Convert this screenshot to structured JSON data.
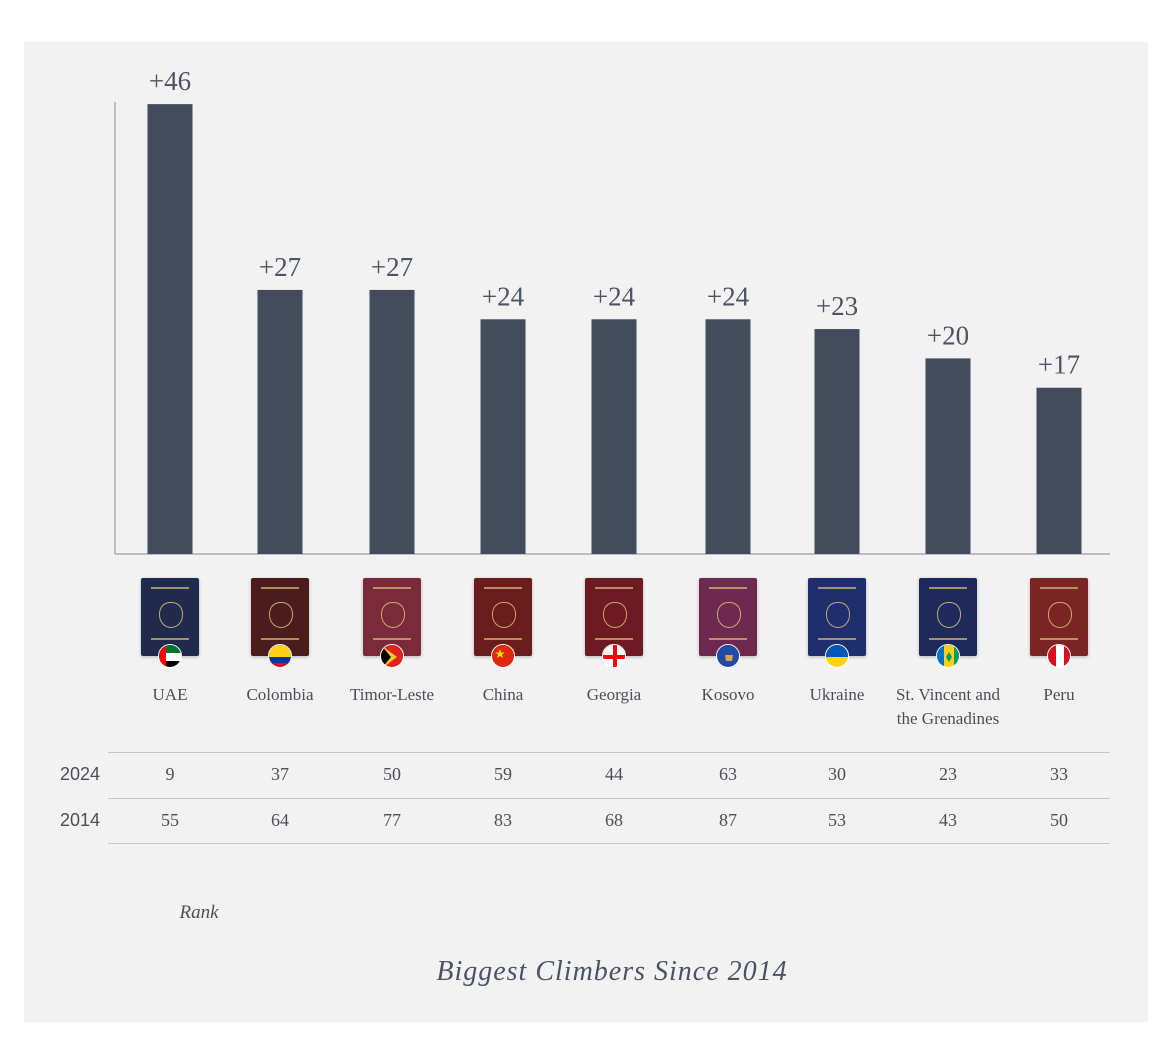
{
  "chart_data": {
    "type": "bar",
    "title": "Biggest Climbers Since 2014",
    "categories": [
      "UAE",
      "Colombia",
      "Timor-Leste",
      "China",
      "Georgia",
      "Kosovo",
      "Ukraine",
      "St. Vincent and the Grenadines",
      "Peru"
    ],
    "category_lines": [
      [
        "UAE"
      ],
      [
        "Colombia"
      ],
      [
        "Timor-Leste"
      ],
      [
        "China"
      ],
      [
        "Georgia"
      ],
      [
        "Kosovo"
      ],
      [
        "Ukraine"
      ],
      [
        "St. Vincent and",
        "the Grenadines"
      ],
      [
        "Peru"
      ]
    ],
    "values": [
      46,
      27,
      27,
      24,
      24,
      24,
      23,
      20,
      17
    ],
    "value_labels": [
      "+46",
      "+27",
      "+27",
      "+24",
      "+24",
      "+24",
      "+23",
      "+20",
      "+17"
    ],
    "ylim": [
      0,
      51
    ],
    "grid": false,
    "bar_color": "#434c5c",
    "table": {
      "rows": [
        {
          "label": "2024",
          "values": [
            "9",
            "37",
            "50",
            "59",
            "44",
            "63",
            "30",
            "23",
            "33"
          ]
        },
        {
          "label": "2014",
          "values": [
            "55",
            "64",
            "77",
            "83",
            "68",
            "87",
            "53",
            "43",
            "50"
          ]
        }
      ],
      "caption": "Rank"
    },
    "passports": [
      {
        "color": "#1f2a4d",
        "flag": "uae-flag-icon"
      },
      {
        "color": "#4a1c1c",
        "flag": "colombia-flag-icon"
      },
      {
        "color": "#7a2a3a",
        "flag": "timor-leste-flag-icon"
      },
      {
        "color": "#6b1c1c",
        "flag": "china-flag-icon"
      },
      {
        "color": "#6e1a22",
        "flag": "georgia-flag-icon"
      },
      {
        "color": "#6d2a4e",
        "flag": "kosovo-flag-icon"
      },
      {
        "color": "#1f2f6e",
        "flag": "ukraine-flag-icon"
      },
      {
        "color": "#1e2a5c",
        "flag": "st-vincent-flag-icon"
      },
      {
        "color": "#7a2424",
        "flag": "peru-flag-icon"
      }
    ]
  }
}
